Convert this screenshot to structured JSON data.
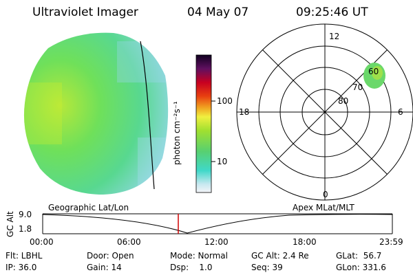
{
  "header": {
    "instrument": "Ultraviolet Imager",
    "date": "04 May 07",
    "time": "09:25:46 UT"
  },
  "colorbar": {
    "unit_label": "photon cm⁻²s⁻¹",
    "ticks": [
      "100",
      "10"
    ]
  },
  "polar_plot": {
    "mlt_labels": {
      "top": "12",
      "left": "18",
      "right": "6",
      "bottom": "0"
    },
    "lat_labels": [
      "60",
      "70",
      "80"
    ]
  },
  "timeline": {
    "left_label": "Geographic Lat/Lon",
    "right_label": "Apex MLat/MLT",
    "ylabel": "GC Alt",
    "y_ticks": [
      "9.0",
      "1.8"
    ],
    "x_ticks": [
      "00:00",
      "06:00",
      "12:00",
      "18:00",
      "23:59"
    ]
  },
  "info": {
    "flt": "Flt: LBHL",
    "ip": "IP: 36.0",
    "door": "Door: Open",
    "gain": "Gain: 14",
    "mode": "Mode: Normal",
    "dsp": "Dsp:    1.0",
    "gcalt": "GC Alt: 2.4 Re",
    "seq": "Seq: 39",
    "glat": "GLat:  56.7",
    "glon": "GLon: 331.6"
  },
  "colors": {
    "earth_green": "#5ad66a",
    "earth_light": "#8fe34a",
    "earth_cyan": "#6fd2b8",
    "marker_red": "#d00000"
  }
}
